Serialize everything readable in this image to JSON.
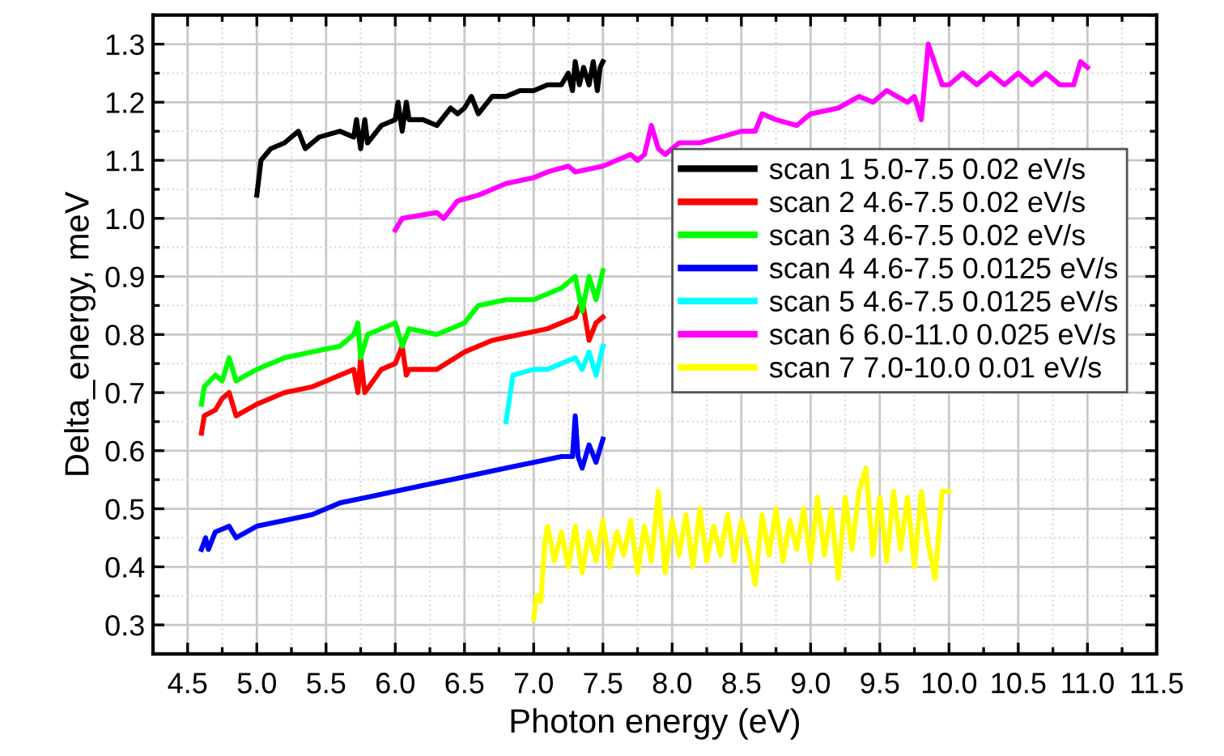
{
  "chart_data": {
    "type": "line",
    "xlabel": "Photon energy (eV)",
    "ylabel": "Delta_energy, meV",
    "xlim": [
      4.25,
      11.5
    ],
    "ylim": [
      0.25,
      1.35
    ],
    "xticks": [
      {
        "value": 4.5,
        "label": "4.5"
      },
      {
        "value": 5.0,
        "label": "5.0"
      },
      {
        "value": 5.5,
        "label": "5.5"
      },
      {
        "value": 6.0,
        "label": "6.0"
      },
      {
        "value": 6.5,
        "label": "6.5"
      },
      {
        "value": 7.0,
        "label": "7.0"
      },
      {
        "value": 7.5,
        "label": "7.5"
      },
      {
        "value": 8.0,
        "label": "8.0"
      },
      {
        "value": 8.5,
        "label": "8.5"
      },
      {
        "value": 9.0,
        "label": "9.0"
      },
      {
        "value": 9.5,
        "label": "9.5"
      },
      {
        "value": 10.0,
        "label": "10.0"
      },
      {
        "value": 10.5,
        "label": "10.5"
      },
      {
        "value": 11.0,
        "label": "11.0"
      },
      {
        "value": 11.5,
        "label": "11.5"
      }
    ],
    "yticks": [
      0.3,
      0.4,
      0.5,
      0.6,
      0.7,
      0.8,
      0.9,
      {
        "value": 1.0,
        "label": "1.0"
      },
      1.1,
      1.2,
      1.3
    ],
    "grid": true,
    "legend": "right",
    "line_style": "solid",
    "marker": "none",
    "series": [
      {
        "name": "scan 1 5.0-7.5 0.02 eV/s",
        "color": "#000000",
        "x": [
          5.0,
          5.03,
          5.1,
          5.2,
          5.3,
          5.35,
          5.45,
          5.6,
          5.7,
          5.72,
          5.75,
          5.78,
          5.8,
          5.9,
          6.0,
          6.02,
          6.05,
          6.08,
          6.1,
          6.2,
          6.3,
          6.4,
          6.45,
          6.5,
          6.55,
          6.6,
          6.7,
          6.8,
          6.9,
          7.0,
          7.1,
          7.2,
          7.25,
          7.28,
          7.3,
          7.33,
          7.36,
          7.4,
          7.43,
          7.46,
          7.48,
          7.5
        ],
        "values": [
          1.04,
          1.1,
          1.12,
          1.13,
          1.15,
          1.12,
          1.14,
          1.15,
          1.14,
          1.17,
          1.12,
          1.17,
          1.13,
          1.16,
          1.17,
          1.2,
          1.15,
          1.2,
          1.17,
          1.17,
          1.16,
          1.19,
          1.18,
          1.19,
          1.21,
          1.18,
          1.21,
          1.21,
          1.22,
          1.22,
          1.23,
          1.23,
          1.25,
          1.22,
          1.27,
          1.23,
          1.26,
          1.23,
          1.27,
          1.22,
          1.26,
          1.27
        ]
      },
      {
        "name": "scan 2 4.6-7.5 0.02 eV/s",
        "color": "#ff0000",
        "x": [
          4.6,
          4.62,
          4.7,
          4.75,
          4.8,
          4.85,
          5.0,
          5.2,
          5.4,
          5.5,
          5.7,
          5.73,
          5.75,
          5.78,
          5.9,
          6.0,
          6.05,
          6.08,
          6.1,
          6.3,
          6.5,
          6.7,
          6.9,
          7.1,
          7.3,
          7.35,
          7.4,
          7.45,
          7.5
        ],
        "values": [
          0.63,
          0.66,
          0.67,
          0.69,
          0.7,
          0.66,
          0.68,
          0.7,
          0.71,
          0.72,
          0.74,
          0.7,
          0.76,
          0.7,
          0.74,
          0.75,
          0.78,
          0.73,
          0.74,
          0.74,
          0.77,
          0.79,
          0.8,
          0.81,
          0.83,
          0.86,
          0.79,
          0.82,
          0.83
        ]
      },
      {
        "name": "scan 3 4.6-7.5 0.02 eV/s",
        "color": "#00ff00",
        "x": [
          4.6,
          4.62,
          4.7,
          4.75,
          4.8,
          4.85,
          5.0,
          5.2,
          5.4,
          5.6,
          5.7,
          5.73,
          5.75,
          5.8,
          6.0,
          6.05,
          6.1,
          6.3,
          6.5,
          6.6,
          6.8,
          7.0,
          7.2,
          7.3,
          7.35,
          7.4,
          7.45,
          7.5
        ],
        "values": [
          0.68,
          0.71,
          0.73,
          0.72,
          0.76,
          0.72,
          0.74,
          0.76,
          0.77,
          0.78,
          0.8,
          0.82,
          0.76,
          0.8,
          0.82,
          0.78,
          0.81,
          0.8,
          0.82,
          0.85,
          0.86,
          0.86,
          0.88,
          0.9,
          0.84,
          0.9,
          0.86,
          0.91
        ]
      },
      {
        "name": "scan 4 4.6-7.5 0.0125 eV/s",
        "color": "#0000ff",
        "x": [
          4.6,
          4.63,
          4.65,
          4.7,
          4.8,
          4.85,
          5.0,
          5.2,
          5.4,
          5.6,
          5.8,
          6.0,
          6.2,
          6.4,
          6.6,
          6.8,
          7.0,
          7.2,
          7.28,
          7.3,
          7.32,
          7.35,
          7.4,
          7.45,
          7.5
        ],
        "values": [
          0.43,
          0.45,
          0.43,
          0.46,
          0.47,
          0.45,
          0.47,
          0.48,
          0.49,
          0.51,
          0.52,
          0.53,
          0.54,
          0.55,
          0.56,
          0.57,
          0.58,
          0.59,
          0.59,
          0.66,
          0.59,
          0.57,
          0.61,
          0.58,
          0.62
        ]
      },
      {
        "name": "scan 5 4.6-7.5 0.0125 eV/s",
        "color": "#00ffff",
        "x": [
          6.8,
          6.85,
          7.0,
          7.1,
          7.2,
          7.3,
          7.35,
          7.4,
          7.45,
          7.5
        ],
        "values": [
          0.65,
          0.73,
          0.74,
          0.74,
          0.75,
          0.76,
          0.74,
          0.77,
          0.73,
          0.78
        ]
      },
      {
        "name": "scan 6 6.0-11.0 0.025 eV/s",
        "color": "#ff00ff",
        "x": [
          6.0,
          6.05,
          6.3,
          6.35,
          6.45,
          6.6,
          6.8,
          7.0,
          7.1,
          7.25,
          7.3,
          7.5,
          7.6,
          7.7,
          7.75,
          7.8,
          7.85,
          7.9,
          7.95,
          8.05,
          8.2,
          8.35,
          8.5,
          8.6,
          8.65,
          8.75,
          8.9,
          9.0,
          9.2,
          9.35,
          9.45,
          9.55,
          9.7,
          9.75,
          9.8,
          9.85,
          9.95,
          10.0,
          10.1,
          10.2,
          10.3,
          10.4,
          10.5,
          10.6,
          10.7,
          10.8,
          10.9,
          10.95,
          11.0
        ],
        "values": [
          0.98,
          1.0,
          1.01,
          1.0,
          1.03,
          1.04,
          1.06,
          1.07,
          1.08,
          1.09,
          1.08,
          1.09,
          1.1,
          1.11,
          1.1,
          1.11,
          1.16,
          1.12,
          1.11,
          1.13,
          1.13,
          1.14,
          1.15,
          1.15,
          1.18,
          1.17,
          1.16,
          1.18,
          1.19,
          1.21,
          1.2,
          1.22,
          1.2,
          1.21,
          1.17,
          1.3,
          1.23,
          1.23,
          1.25,
          1.23,
          1.25,
          1.23,
          1.25,
          1.23,
          1.25,
          1.23,
          1.23,
          1.27,
          1.26
        ]
      },
      {
        "name": "scan 7 7.0-10.0 0.01 eV/s",
        "color": "#ffff00",
        "x": [
          7.0,
          7.02,
          7.05,
          7.08,
          7.1,
          7.15,
          7.2,
          7.25,
          7.3,
          7.35,
          7.4,
          7.45,
          7.5,
          7.55,
          7.6,
          7.65,
          7.7,
          7.75,
          7.8,
          7.85,
          7.9,
          7.95,
          8.0,
          8.05,
          8.1,
          8.15,
          8.2,
          8.25,
          8.3,
          8.35,
          8.4,
          8.45,
          8.5,
          8.55,
          8.6,
          8.65,
          8.7,
          8.75,
          8.8,
          8.85,
          8.9,
          8.95,
          9.0,
          9.05,
          9.1,
          9.15,
          9.2,
          9.25,
          9.3,
          9.35,
          9.4,
          9.45,
          9.5,
          9.55,
          9.6,
          9.65,
          9.7,
          9.75,
          9.8,
          9.85,
          9.9,
          9.95,
          10.0
        ],
        "values": [
          0.31,
          0.35,
          0.34,
          0.44,
          0.47,
          0.41,
          0.46,
          0.4,
          0.47,
          0.39,
          0.46,
          0.41,
          0.48,
          0.4,
          0.46,
          0.42,
          0.48,
          0.39,
          0.47,
          0.41,
          0.53,
          0.39,
          0.48,
          0.42,
          0.49,
          0.4,
          0.5,
          0.41,
          0.47,
          0.42,
          0.49,
          0.41,
          0.48,
          0.43,
          0.37,
          0.49,
          0.42,
          0.5,
          0.41,
          0.48,
          0.43,
          0.5,
          0.41,
          0.52,
          0.42,
          0.5,
          0.38,
          0.52,
          0.43,
          0.53,
          0.57,
          0.42,
          0.52,
          0.41,
          0.53,
          0.43,
          0.52,
          0.4,
          0.53,
          0.44,
          0.38,
          0.53,
          0.53
        ]
      }
    ]
  }
}
